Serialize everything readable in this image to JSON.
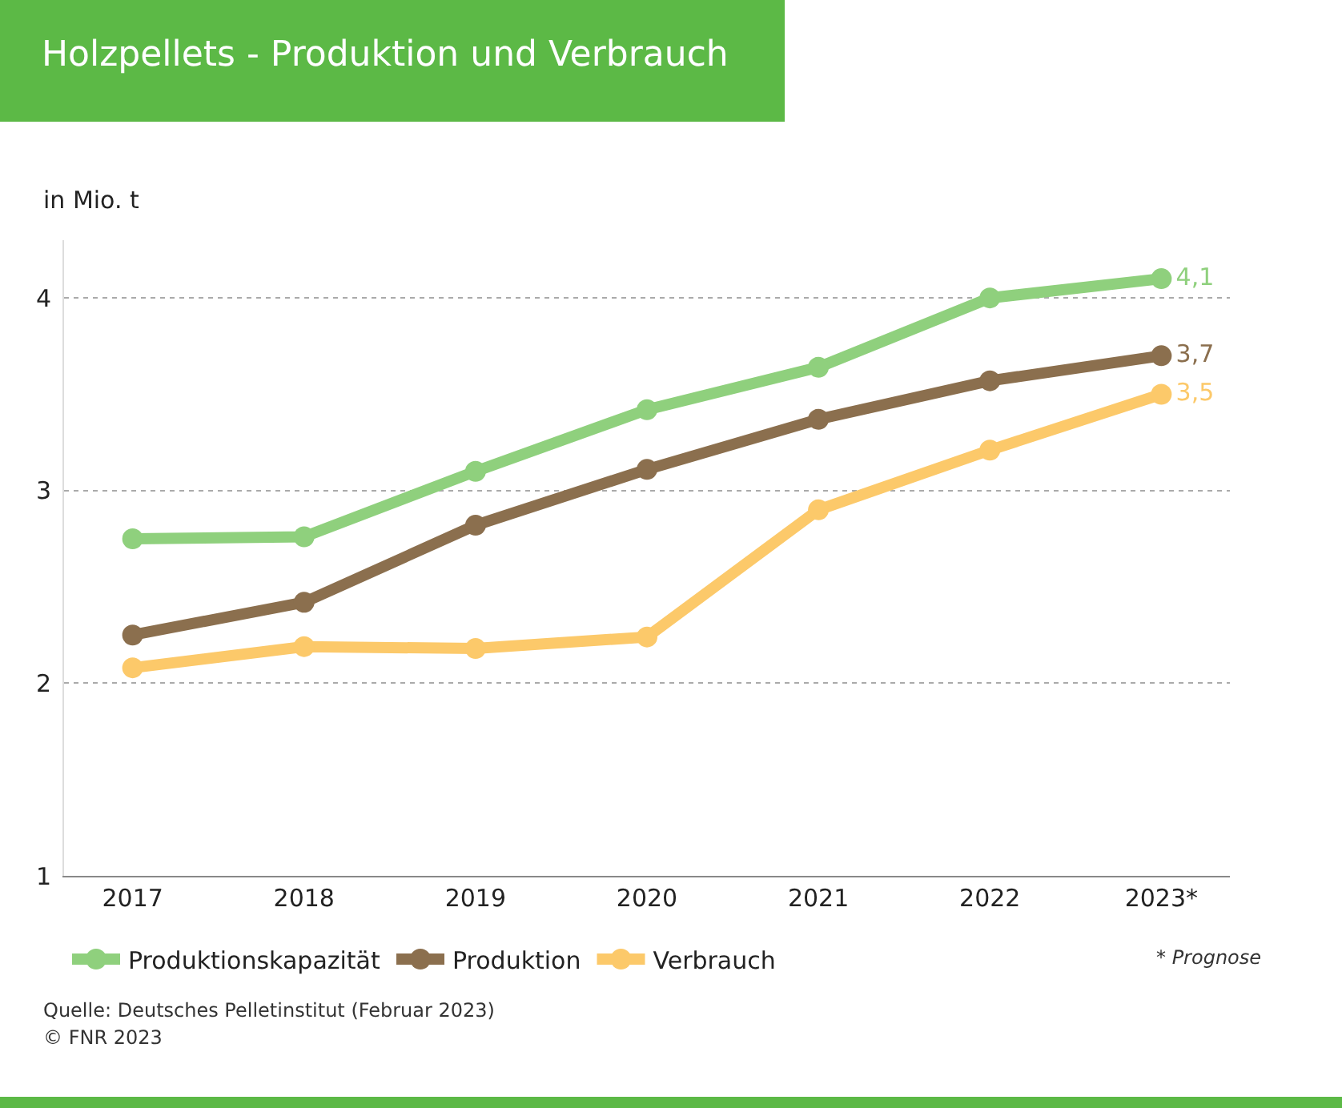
{
  "chart_data": {
    "type": "line",
    "title": "Holzpellets - Produktion und Verbrauch",
    "ylabel": "in Mio. t",
    "categories": [
      "2017",
      "2018",
      "2019",
      "2020",
      "2021",
      "2022",
      "2023*"
    ],
    "series": [
      {
        "name": "Produktionskapazität",
        "color": "#8fd07d",
        "values": [
          2.75,
          2.76,
          3.1,
          3.42,
          3.64,
          4.0,
          4.1
        ],
        "value_labels": [
          null,
          null,
          null,
          null,
          null,
          null,
          "4,1"
        ]
      },
      {
        "name": "Produktion",
        "color": "#8b6f4e",
        "values": [
          2.25,
          2.42,
          2.82,
          3.11,
          3.37,
          3.57,
          3.7
        ],
        "value_labels": [
          null,
          null,
          null,
          null,
          null,
          null,
          "3,7"
        ]
      },
      {
        "name": "Verbrauch",
        "color": "#fcc96a",
        "values": [
          2.08,
          2.19,
          2.18,
          2.24,
          2.9,
          3.21,
          3.5
        ],
        "value_labels": [
          null,
          null,
          null,
          null,
          null,
          null,
          "3,5"
        ]
      }
    ],
    "ylim": [
      1,
      4.3
    ],
    "yticks": [
      1,
      2,
      3,
      4
    ],
    "grid": "y",
    "legend": "bottom",
    "marker": "circle",
    "line_style": "solid",
    "annotations": [
      "* Prognose",
      "Quelle: Deutsches Pelletinstitut (Februar 2023)",
      "© FNR 2023"
    ]
  }
}
